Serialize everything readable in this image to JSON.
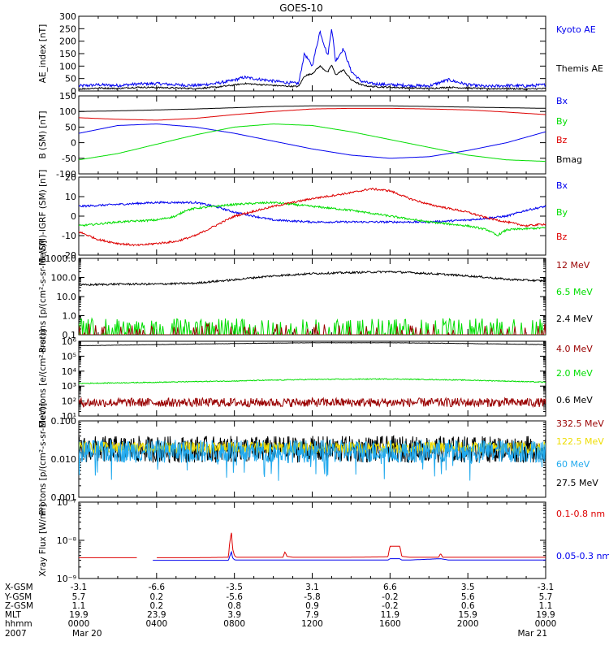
{
  "title": "GOES-10",
  "colors": {
    "black": "#000000",
    "blue": "#0000ee",
    "red": "#dd0000",
    "green": "#00dd00",
    "darkred": "#990000",
    "yellow": "#eedd00",
    "cyan": "#22aaee"
  },
  "chart_data": [
    {
      "id": "ae",
      "type": "line",
      "ylabel": "AE_index [nT]",
      "ylim": [
        0,
        300
      ],
      "yticks": [
        0,
        50,
        100,
        150,
        200,
        250,
        300
      ],
      "log": false,
      "legend": [
        {
          "label": "Kyoto AE",
          "color": "blue"
        },
        {
          "label": "Themis AE",
          "color": "black"
        }
      ],
      "series": [
        {
          "name": "Kyoto AE",
          "color": "blue",
          "x": [
            0,
            1,
            2,
            3,
            4,
            5,
            6,
            7,
            7.8,
            8.5,
            9.5,
            10.5,
            11.3,
            11.6,
            12,
            12.4,
            12.8,
            13,
            13.2,
            13.6,
            14,
            14.5,
            15,
            16,
            17,
            18,
            19,
            20,
            21,
            22,
            23,
            24
          ],
          "y": [
            20,
            25,
            22,
            28,
            30,
            25,
            22,
            30,
            40,
            55,
            45,
            35,
            30,
            150,
            100,
            240,
            140,
            255,
            120,
            170,
            80,
            40,
            30,
            25,
            22,
            20,
            45,
            25,
            18,
            22,
            20,
            25
          ]
        },
        {
          "name": "Themis AE",
          "color": "black",
          "x": [
            0,
            1,
            2,
            3,
            4,
            5,
            6,
            7,
            7.8,
            8.5,
            9.5,
            10.5,
            11.3,
            11.6,
            12,
            12.4,
            12.8,
            13,
            13.2,
            13.6,
            14,
            14.5,
            15,
            16,
            17,
            18,
            19,
            20,
            21,
            22,
            23,
            24
          ],
          "y": [
            8,
            12,
            10,
            15,
            14,
            12,
            10,
            15,
            22,
            30,
            25,
            20,
            18,
            60,
            70,
            100,
            75,
            105,
            65,
            85,
            45,
            25,
            18,
            15,
            12,
            10,
            15,
            12,
            9,
            10,
            8,
            10
          ]
        }
      ]
    },
    {
      "id": "bsm",
      "type": "line",
      "ylabel": "B (SM) [nT]",
      "ylim": [
        -100,
        150
      ],
      "yticks": [
        -100,
        -50,
        0,
        50,
        100,
        150
      ],
      "log": false,
      "legend": [
        {
          "label": "Bx",
          "color": "blue"
        },
        {
          "label": "By",
          "color": "green"
        },
        {
          "label": "Bz",
          "color": "red"
        },
        {
          "label": "Bmag",
          "color": "black"
        }
      ],
      "series": [
        {
          "name": "Bx",
          "color": "blue",
          "x": [
            0,
            2,
            4,
            6,
            8,
            10,
            12,
            14,
            16,
            18,
            20,
            22,
            24
          ],
          "y": [
            30,
            55,
            60,
            50,
            30,
            5,
            -20,
            -40,
            -50,
            -45,
            -25,
            0,
            35
          ]
        },
        {
          "name": "By",
          "color": "green",
          "x": [
            0,
            2,
            4,
            6,
            8,
            10,
            12,
            14,
            16,
            18,
            20,
            22,
            24
          ],
          "y": [
            -55,
            -35,
            -5,
            25,
            50,
            60,
            55,
            35,
            10,
            -15,
            -40,
            -55,
            -60
          ]
        },
        {
          "name": "Bz",
          "color": "red",
          "x": [
            0,
            2,
            4,
            6,
            8,
            10,
            12,
            14,
            16,
            18,
            20,
            22,
            24
          ],
          "y": [
            80,
            75,
            72,
            78,
            90,
            100,
            108,
            110,
            110,
            108,
            105,
            98,
            90
          ]
        },
        {
          "name": "Bmag",
          "color": "black",
          "x": [
            0,
            2,
            4,
            6,
            8,
            10,
            12,
            14,
            16,
            18,
            20,
            22,
            24
          ],
          "y": [
            100,
            102,
            105,
            108,
            112,
            116,
            118,
            118,
            118,
            116,
            114,
            112,
            110
          ]
        }
      ]
    },
    {
      "id": "bres",
      "type": "line",
      "ylabel": "B (SM)-IGRF (SM) [nT]",
      "ylim": [
        -20,
        20
      ],
      "yticks": [
        -20,
        -10,
        0,
        10,
        20
      ],
      "log": false,
      "legend": [
        {
          "label": "Bx",
          "color": "blue"
        },
        {
          "label": "By",
          "color": "green"
        },
        {
          "label": "Bz",
          "color": "red"
        }
      ],
      "series": [
        {
          "name": "Bx",
          "color": "blue",
          "x": [
            0,
            2,
            4,
            6,
            7,
            8,
            9,
            10,
            12,
            14,
            16,
            18,
            20,
            22,
            23,
            24
          ],
          "y": [
            5,
            6,
            7,
            7,
            5,
            2,
            0,
            -2,
            -3,
            -3,
            -3,
            -3,
            -2,
            0,
            3,
            5
          ]
        },
        {
          "name": "By",
          "color": "green",
          "x": [
            0,
            2,
            4,
            5,
            5.5,
            6,
            8,
            10,
            12,
            14,
            16,
            18,
            20,
            21,
            21.5,
            22,
            24
          ],
          "y": [
            -5,
            -3,
            -2,
            0,
            3,
            4,
            6,
            7,
            5,
            3,
            0,
            -3,
            -5,
            -7,
            -10,
            -7,
            -6
          ]
        },
        {
          "name": "Bz",
          "color": "red",
          "x": [
            0,
            1,
            2,
            3,
            4,
            5,
            6,
            7,
            8,
            10,
            12,
            14,
            15,
            16,
            17,
            18,
            19,
            20,
            21,
            22,
            23,
            24
          ],
          "y": [
            -8,
            -12,
            -14,
            -15,
            -14,
            -13,
            -10,
            -5,
            0,
            5,
            9,
            12,
            14,
            13,
            9,
            6,
            4,
            2,
            -1,
            -3,
            -5,
            -4
          ]
        }
      ]
    },
    {
      "id": "pro1",
      "type": "line",
      "ylabel": "Protons [p/(cm²-s-sr-MeV)]",
      "ylim": [
        0.1,
        1000
      ],
      "yticks": [
        0.1,
        1,
        10,
        100,
        1000
      ],
      "ytick_labels": [
        "0.1",
        "1.0",
        "10.0",
        "100.0",
        "1000.0"
      ],
      "log": true,
      "legend": [
        {
          "label": "12 MeV",
          "color": "darkred"
        },
        {
          "label": "6.5 MeV",
          "color": "green"
        },
        {
          "label": "2.4 MeV",
          "color": "black"
        }
      ],
      "series": [
        {
          "name": "2.4 MeV",
          "color": "black",
          "x": [
            0,
            2,
            4,
            6,
            8,
            10,
            12,
            14,
            16,
            18,
            20,
            22,
            24
          ],
          "y": [
            40,
            45,
            45,
            50,
            75,
            120,
            160,
            180,
            200,
            160,
            120,
            80,
            65
          ]
        }
      ]
    },
    {
      "id": "ele",
      "type": "line",
      "ylabel": "Electrons [e/(cm²-s-sr)]",
      "ylim": [
        10,
        1000000
      ],
      "yticks": [
        10,
        100,
        1000,
        10000,
        100000,
        1000000
      ],
      "ytick_labels": [
        "10¹",
        "10²",
        "10³",
        "10⁴",
        "10⁵",
        "10⁶"
      ],
      "log": true,
      "legend": [
        {
          "label": "4.0 MeV",
          "color": "darkred"
        },
        {
          "label": "2.0 MeV",
          "color": "green"
        },
        {
          "label": "0.6 MeV",
          "color": "black"
        }
      ],
      "series": [
        {
          "name": "2.0 MeV",
          "color": "green",
          "x": [
            0,
            4,
            8,
            12,
            16,
            20,
            24
          ],
          "y": [
            1500,
            1800,
            2200,
            2800,
            3000,
            2500,
            1800
          ]
        },
        {
          "name": "0.6 MeV",
          "color": "black",
          "x": [
            0,
            4,
            8,
            12,
            16,
            20,
            24
          ],
          "y": [
            500000,
            600000,
            700000,
            800000,
            800000,
            700000,
            600000
          ]
        }
      ]
    },
    {
      "id": "pro2",
      "type": "line",
      "ylabel": "Protons [p/(cm²-s-sr-MeV)]",
      "ylim": [
        0.001,
        0.1
      ],
      "yticks": [
        0.001,
        0.01,
        0.1
      ],
      "ytick_labels": [
        "0.001",
        "0.010",
        "0.100"
      ],
      "log": true,
      "legend": [
        {
          "label": "332.5 MeV",
          "color": "darkred"
        },
        {
          "label": "122.5 MeV",
          "color": "yellow"
        },
        {
          "label": "60 MeV",
          "color": "cyan"
        },
        {
          "label": "27.5 MeV",
          "color": "black"
        }
      ]
    },
    {
      "id": "xray",
      "type": "line",
      "ylabel": "Xray Flux [W/m²]",
      "ylim": [
        1e-09,
        1e-07
      ],
      "yticks": [
        1e-09,
        1e-08,
        1e-07
      ],
      "ytick_labels": [
        "10⁻⁹",
        "10⁻⁸",
        "10⁻⁷"
      ],
      "log": true,
      "legend": [
        {
          "label": "0.1-0.8 nm",
          "color": "red"
        },
        {
          "label": "0.05-0.3 nm",
          "color": "blue"
        }
      ],
      "series": [
        {
          "name": "0.1-0.8 nm",
          "color": "red",
          "x": [
            0,
            3,
            3.2,
            3.3,
            3.4,
            3.5,
            3.6,
            3.7,
            4,
            6,
            7.7,
            7.85,
            7.9,
            8.0,
            8.1,
            8.3,
            10,
            10.5,
            10.6,
            10.7,
            11,
            12,
            14,
            15.9,
            16.0,
            16.5,
            16.6,
            17,
            18.5,
            18.6,
            18.7,
            19,
            24
          ],
          "y": [
            3.5e-09,
            3.5e-09,
            null,
            null,
            null,
            null,
            null,
            null,
            3.5e-09,
            3.5e-09,
            3.6e-09,
            1.6e-08,
            6e-09,
            4e-09,
            3.6e-09,
            3.6e-09,
            3.6e-09,
            3.6e-09,
            5e-09,
            3.8e-09,
            3.6e-09,
            3.6e-09,
            3.6e-09,
            3.7e-09,
            7e-09,
            7e-09,
            3.8e-09,
            3.6e-09,
            3.6e-09,
            4.5e-09,
            3.6e-09,
            3.6e-09,
            3.6e-09
          ]
        },
        {
          "name": "0.05-0.3 nm",
          "color": "blue",
          "x": [
            3.8,
            6,
            7.7,
            7.85,
            7.9,
            8.0,
            8.1,
            8.3,
            10,
            12,
            14,
            15.9,
            16.0,
            16.5,
            16.6,
            17,
            18.6,
            19,
            24
          ],
          "y": [
            3e-09,
            3e-09,
            3e-09,
            5e-09,
            3.5e-09,
            3.1e-09,
            3.05e-09,
            3.05e-09,
            3.05e-09,
            3.05e-09,
            3.05e-09,
            3.05e-09,
            3.3e-09,
            3.3e-09,
            3.05e-09,
            3.05e-09,
            3.3e-09,
            3.05e-09,
            3.05e-09
          ]
        }
      ]
    }
  ],
  "ephemeris": {
    "labels": [
      "X-GSM",
      "Y-GSM",
      "Z-GSM",
      "MLT",
      "hhmm",
      "2007"
    ],
    "columns": [
      {
        "x": 0,
        "values": [
          "-3.1",
          "5.7",
          "1.1",
          "19.9",
          "0000",
          "Mar 20"
        ]
      },
      {
        "x": 4,
        "values": [
          "-6.6",
          "0.2",
          "0.2",
          "23.9",
          "0400",
          ""
        ]
      },
      {
        "x": 8,
        "values": [
          "-3.5",
          "-5.6",
          "0.8",
          "3.9",
          "0800",
          ""
        ]
      },
      {
        "x": 12,
        "values": [
          "3.1",
          "-5.8",
          "0.9",
          "7.9",
          "1200",
          ""
        ]
      },
      {
        "x": 16,
        "values": [
          "6.6",
          "-0.2",
          "-0.2",
          "11.9",
          "1600",
          ""
        ]
      },
      {
        "x": 20,
        "values": [
          "3.5",
          "5.6",
          "0.6",
          "15.9",
          "2000",
          ""
        ]
      },
      {
        "x": 24,
        "values": [
          "-3.1",
          "5.7",
          "1.1",
          "19.9",
          "0000",
          "Mar 21"
        ]
      }
    ]
  }
}
